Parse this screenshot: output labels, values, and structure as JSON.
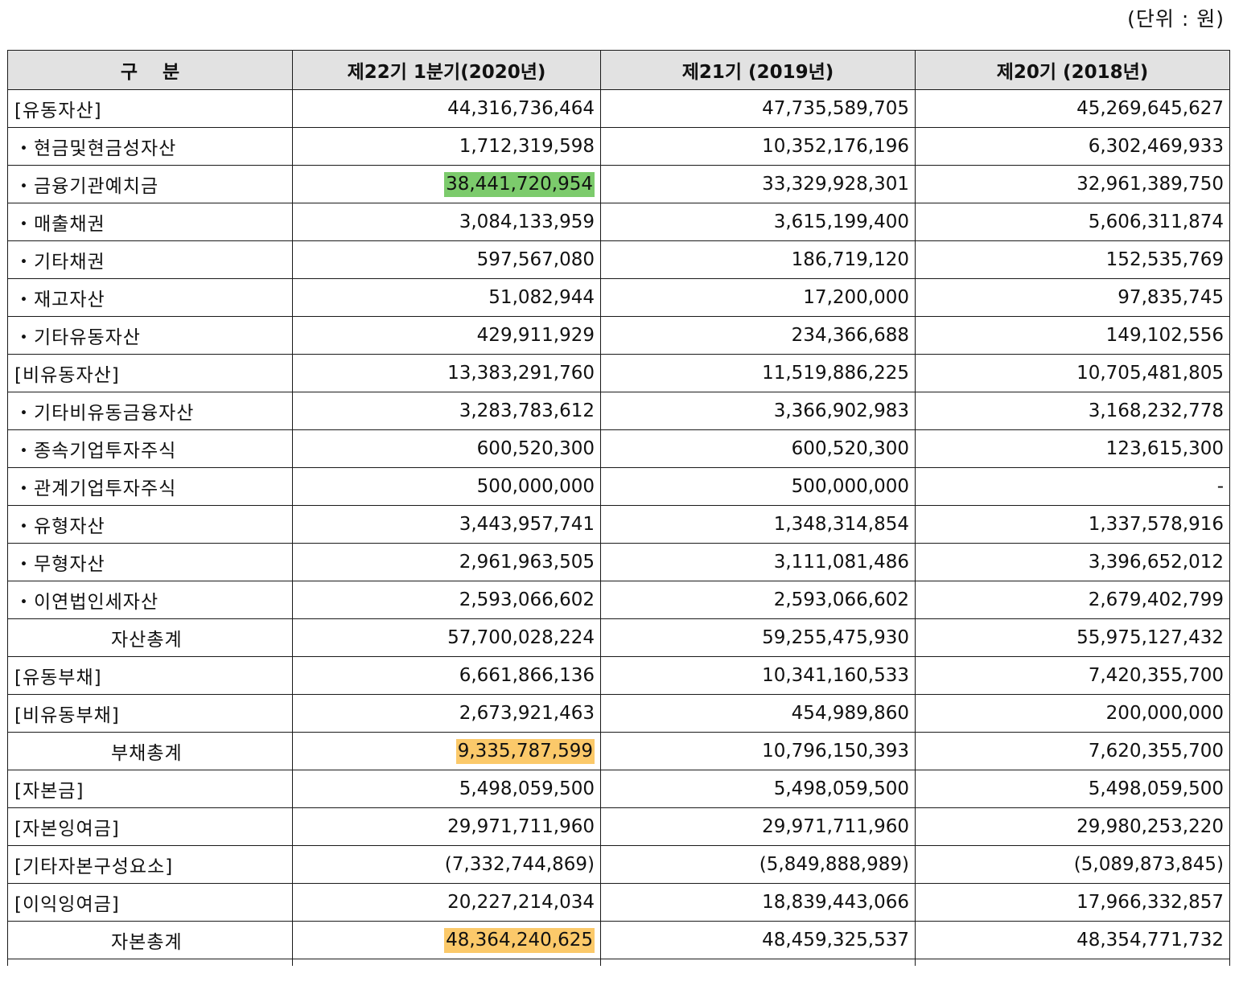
{
  "unit_label": "(단위 : 원)",
  "colors": {
    "header_bg": "#e2e2e2",
    "highlight_green": "#7ccb6c",
    "highlight_orange": "#fbc96a"
  },
  "table": {
    "headers": [
      "구　 분",
      "제22기 1분기(2020년)",
      "제21기 (2019년)",
      "제20기 (2018년)"
    ],
    "rows": [
      {
        "label": "[유동자산]",
        "values": [
          "44,316,736,464",
          "47,735,589,705",
          "45,269,645,627"
        ]
      },
      {
        "label": "・현금및현금성자산",
        "values": [
          "1,712,319,598",
          "10,352,176,196",
          "6,302,469,933"
        ]
      },
      {
        "label": "・금융기관예치금",
        "values": [
          "38,441,720,954",
          "33,329,928,301",
          "32,961,389,750"
        ]
      },
      {
        "label": "・매출채권",
        "values": [
          "3,084,133,959",
          "3,615,199,400",
          "5,606,311,874"
        ]
      },
      {
        "label": "・기타채권",
        "values": [
          "597,567,080",
          "186,719,120",
          "152,535,769"
        ]
      },
      {
        "label": "・재고자산",
        "values": [
          "51,082,944",
          "17,200,000",
          "97,835,745"
        ]
      },
      {
        "label": "・기타유동자산",
        "values": [
          "429,911,929",
          "234,366,688",
          "149,102,556"
        ]
      },
      {
        "label": "[비유동자산]",
        "values": [
          "13,383,291,760",
          "11,519,886,225",
          "10,705,481,805"
        ]
      },
      {
        "label": "・기타비유동금융자산",
        "values": [
          "3,283,783,612",
          "3,366,902,983",
          "3,168,232,778"
        ]
      },
      {
        "label": "・종속기업투자주식",
        "values": [
          "600,520,300",
          "600,520,300",
          "123,615,300"
        ]
      },
      {
        "label": "・관계기업투자주식",
        "values": [
          "500,000,000",
          "500,000,000",
          "-"
        ]
      },
      {
        "label": "・유형자산",
        "values": [
          "3,443,957,741",
          "1,348,314,854",
          "1,337,578,916"
        ]
      },
      {
        "label": "・무형자산",
        "values": [
          "2,961,963,505",
          "3,111,081,486",
          "3,396,652,012"
        ]
      },
      {
        "label": "・이연법인세자산",
        "values": [
          "2,593,066,602",
          "2,593,066,602",
          "2,679,402,799"
        ]
      },
      {
        "label": "자산총계",
        "values": [
          "57,700,028,224",
          "59,255,475,930",
          "55,975,127,432"
        ]
      },
      {
        "label": "[유동부채]",
        "values": [
          "6,661,866,136",
          "10,341,160,533",
          "7,420,355,700"
        ]
      },
      {
        "label": "[비유동부채]",
        "values": [
          "2,673,921,463",
          "454,989,860",
          "200,000,000"
        ]
      },
      {
        "label": "부채총계",
        "values": [
          "9,335,787,599",
          "10,796,150,393",
          "7,620,355,700"
        ]
      },
      {
        "label": "[자본금]",
        "values": [
          "5,498,059,500",
          "5,498,059,500",
          "5,498,059,500"
        ]
      },
      {
        "label": "[자본잉여금]",
        "values": [
          "29,971,711,960",
          "29,971,711,960",
          "29,980,253,220"
        ]
      },
      {
        "label": "[기타자본구성요소]",
        "values": [
          "(7,332,744,869)",
          "(5,849,888,989)",
          "(5,089,873,845)"
        ]
      },
      {
        "label": "[이익잉여금]",
        "values": [
          "20,227,214,034",
          "18,839,443,066",
          "17,966,332,857"
        ]
      },
      {
        "label": "자본총계",
        "values": [
          "48,364,240,625",
          "48,459,325,537",
          "48,354,771,732"
        ]
      }
    ]
  }
}
